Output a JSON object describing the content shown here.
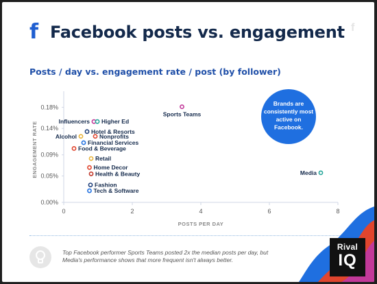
{
  "header": {
    "title": "Facebook posts vs. engagement",
    "subtitle": "Posts / day vs. engagement rate / post (by follower)",
    "logo_icon": "facebook-icon",
    "corner_icon": "facebook-icon"
  },
  "callout": {
    "lines": [
      "Brands are",
      "consistently most",
      "active on",
      "Facebook."
    ],
    "color": "#1f6fe0"
  },
  "footer": {
    "footnote": "Top Facebook performer Sports Teams posted 2x the median posts per day, but Media's performance shows that more frequent isn't always better.",
    "icon": "lightbulb-icon",
    "brand_top": "Rival",
    "brand_bottom": "IQ"
  },
  "chart_data": {
    "type": "scatter",
    "xlabel": "POSTS PER DAY",
    "ylabel": "ENGAGEMENT RATE",
    "xlim": [
      0,
      8
    ],
    "ylim": [
      0,
      0.2
    ],
    "xticks": [
      0,
      2,
      4,
      6,
      8
    ],
    "yticks": [
      0,
      0.05,
      0.09,
      0.14,
      0.18
    ],
    "ytick_labels": [
      "0.00%",
      "0.05%",
      "0.09%",
      "0.14%",
      "0.18%"
    ],
    "grid": false,
    "points": [
      {
        "label": "Sports Teams",
        "x": 3.45,
        "y": 0.181,
        "color": "#c2399a",
        "label_pos": "below"
      },
      {
        "label": "Influencers",
        "x": 0.88,
        "y": 0.153,
        "color": "#c2399a",
        "label_pos": "left"
      },
      {
        "label": "Higher Ed",
        "x": 0.98,
        "y": 0.153,
        "color": "#26a69a",
        "label_pos": "right"
      },
      {
        "label": "Hotel & Resorts",
        "x": 0.68,
        "y": 0.134,
        "color": "#1f3f7a",
        "label_pos": "right"
      },
      {
        "label": "Nonprofits",
        "x": 0.92,
        "y": 0.125,
        "color": "#e0452e",
        "label_pos": "right"
      },
      {
        "label": "Alcohol",
        "x": 0.5,
        "y": 0.125,
        "color": "#e8b43a",
        "label_pos": "left"
      },
      {
        "label": "Financial Services",
        "x": 0.58,
        "y": 0.113,
        "color": "#1f6fe0",
        "label_pos": "right"
      },
      {
        "label": "Food & Beverage",
        "x": 0.3,
        "y": 0.102,
        "color": "#e0452e",
        "label_pos": "right"
      },
      {
        "label": "Retail",
        "x": 0.8,
        "y": 0.083,
        "color": "#e8b43a",
        "label_pos": "right"
      },
      {
        "label": "Home Decor",
        "x": 0.75,
        "y": 0.066,
        "color": "#e0452e",
        "label_pos": "right"
      },
      {
        "label": "Health & Beauty",
        "x": 0.8,
        "y": 0.054,
        "color": "#c0392b",
        "label_pos": "right"
      },
      {
        "label": "Media",
        "x": 7.5,
        "y": 0.056,
        "color": "#26a69a",
        "label_pos": "left"
      },
      {
        "label": "Fashion",
        "x": 0.78,
        "y": 0.033,
        "color": "#1f3f7a",
        "label_pos": "right"
      },
      {
        "label": "Tech & Software",
        "x": 0.75,
        "y": 0.022,
        "color": "#1f6fe0",
        "label_pos": "right"
      }
    ]
  }
}
